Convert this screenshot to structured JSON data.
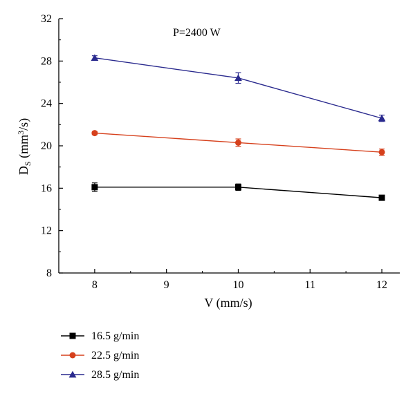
{
  "chart_data": {
    "type": "line",
    "annotation": "P=2400 W",
    "xlabel": "V (mm/s)",
    "ylabel": {
      "main": "D",
      "sub": "S",
      "unit_pre": " (mm",
      "unit_sup": "3",
      "unit_post": "/s)"
    },
    "xlim": [
      7.5,
      12.25
    ],
    "ylim": [
      8,
      32
    ],
    "xticks": [
      8,
      9,
      10,
      11,
      12
    ],
    "yticks": [
      8,
      12,
      16,
      20,
      24,
      28,
      32
    ],
    "grid": false,
    "legend_position": "bottom-left",
    "series": [
      {
        "name": "16.5 g/min",
        "color": "#000000",
        "marker": "square",
        "x": [
          8,
          10,
          12
        ],
        "y": [
          16.1,
          16.1,
          15.1
        ],
        "err": [
          0.4,
          0.3,
          0.15
        ]
      },
      {
        "name": "22.5 g/min",
        "color": "#d6401c",
        "marker": "circle",
        "x": [
          8,
          10,
          12
        ],
        "y": [
          21.2,
          20.3,
          19.4
        ],
        "err": [
          0.15,
          0.35,
          0.3
        ]
      },
      {
        "name": "28.5 g/min",
        "color": "#2a2a8e",
        "marker": "triangle",
        "x": [
          8,
          10,
          12
        ],
        "y": [
          28.3,
          26.4,
          22.6
        ],
        "err": [
          0.2,
          0.5,
          0.3
        ]
      }
    ]
  }
}
